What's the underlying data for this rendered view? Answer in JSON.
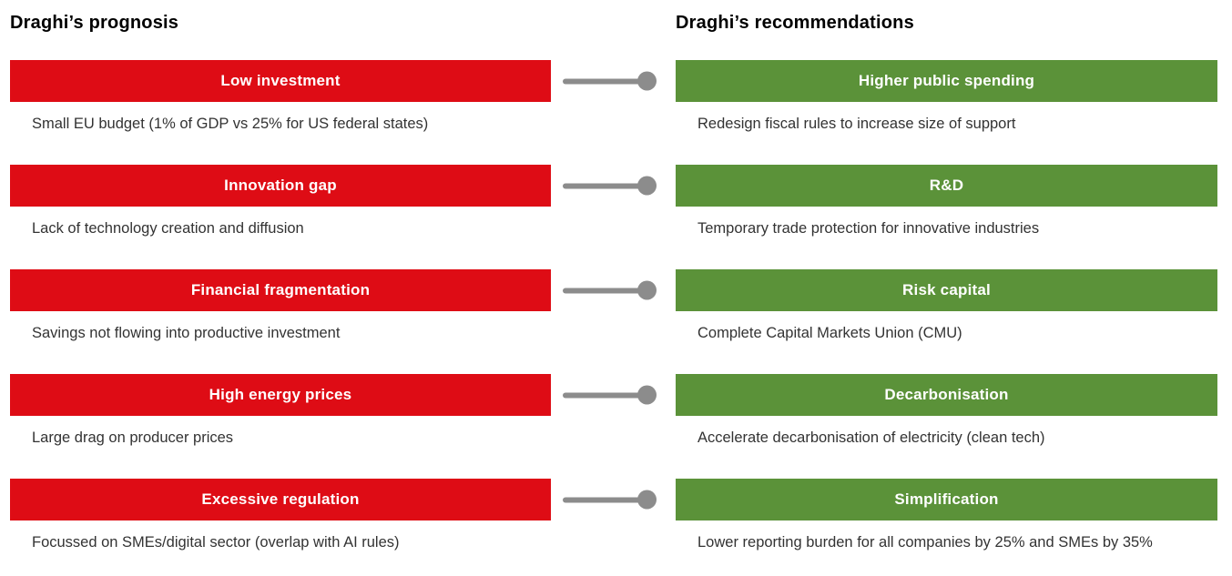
{
  "left_column": {
    "title": "Draghi’s prognosis",
    "items": [
      {
        "label": "Low investment",
        "description": "Small EU budget (1% of GDP vs 25% for US federal states)"
      },
      {
        "label": "Innovation gap",
        "description": "Lack of technology creation and diffusion"
      },
      {
        "label": "Financial fragmentation",
        "description": "Savings not flowing into productive investment"
      },
      {
        "label": "High energy prices",
        "description": "Large drag on producer prices"
      },
      {
        "label": "Excessive regulation",
        "description": "Focussed on SMEs/digital sector (overlap with AI rules)"
      }
    ]
  },
  "right_column": {
    "title": "Draghi’s recommendations",
    "items": [
      {
        "label": "Higher public spending",
        "description": "Redesign fiscal rules to increase size of support"
      },
      {
        "label": "R&D",
        "description": "Temporary trade protection for innovative industries"
      },
      {
        "label": "Risk capital",
        "description": "Complete Capital Markets Union (CMU)"
      },
      {
        "label": "Decarbonisation",
        "description": "Accelerate decarbonisation of electricity (clean tech)"
      },
      {
        "label": "Simplification",
        "description": "Lower reporting burden for all companies by 25% and SMEs by 35%"
      }
    ]
  },
  "colors": {
    "prognosis_box": "#de0c15",
    "recommendation_box": "#5b9239",
    "connector": "#8c8c8c",
    "box_text": "#ffffff",
    "description_text": "#333333",
    "title_text": "#000000"
  }
}
